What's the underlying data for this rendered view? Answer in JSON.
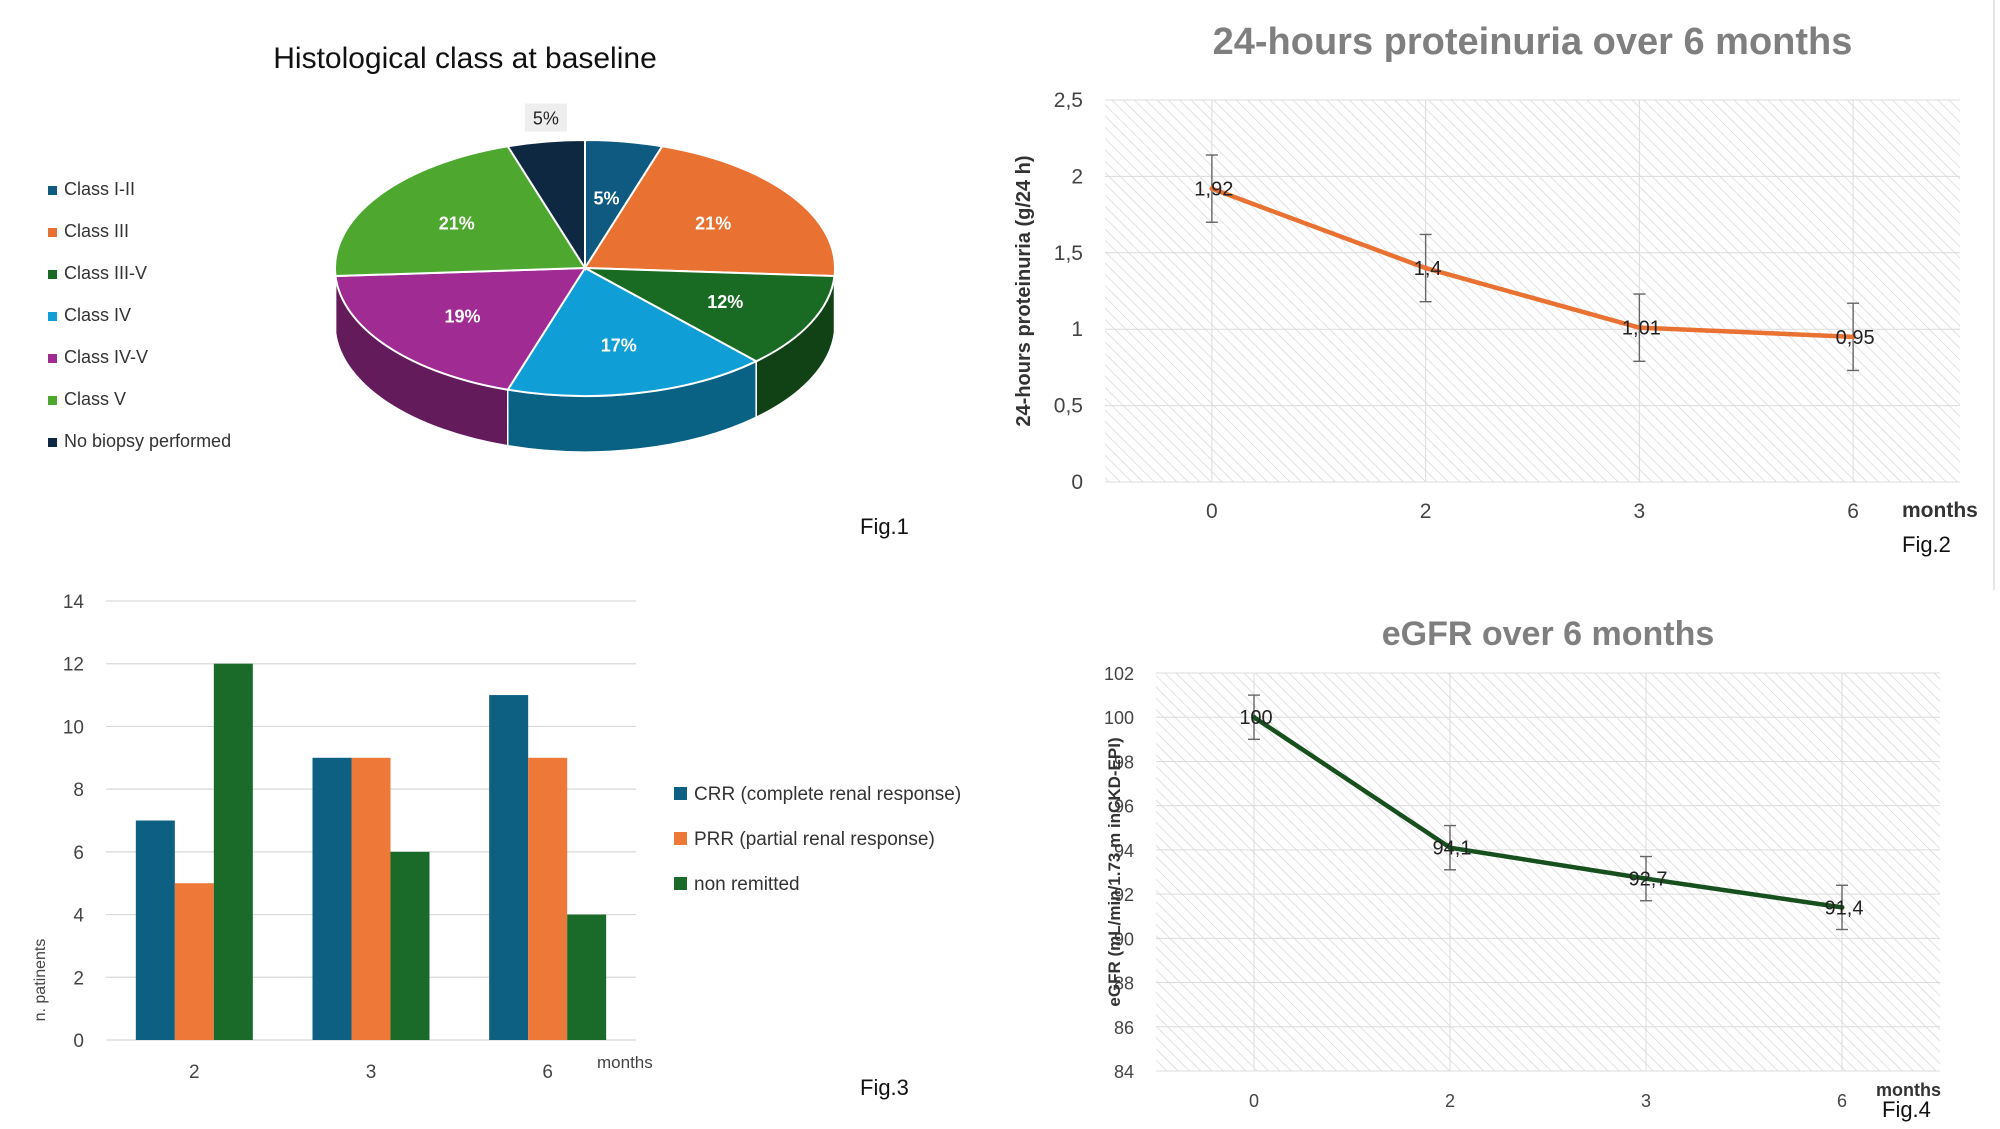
{
  "figures": {
    "fig1": "Fig.1",
    "fig2": "Fig.2",
    "fig3": "Fig.3",
    "fig4": "Fig.4"
  },
  "chart_data": [
    {
      "id": "fig1",
      "type": "pie",
      "title": "Histological class at baseline",
      "categories": [
        "Class I-II",
        "Class III",
        "Class III-V",
        "Class IV",
        "Class IV-V",
        "Class V",
        "No biopsy performed"
      ],
      "values": [
        5,
        21,
        12,
        17,
        19,
        21,
        5
      ],
      "labels": [
        "5%",
        "21%",
        "12%",
        "17%",
        "19%",
        "21%",
        "5%"
      ],
      "colors": [
        "#0e5a80",
        "#e97132",
        "#196b24",
        "#0f9ed5",
        "#a02b93",
        "#4ea72e",
        "#0e2841"
      ],
      "legend": "left"
    },
    {
      "id": "fig2",
      "type": "line",
      "title": "24-hours proteinuria over 6 months",
      "xlabel": "months",
      "ylabel": "24-hours proteinuria (g/24 h)",
      "categories": [
        "0",
        "2",
        "3",
        "6"
      ],
      "values": [
        1.92,
        1.4,
        1.01,
        0.95
      ],
      "value_labels": [
        "1,92",
        "1,4",
        "1,01",
        "0,95"
      ],
      "error_low": [
        1.7,
        1.18,
        0.79,
        0.73
      ],
      "error_high": [
        2.14,
        1.62,
        1.23,
        1.17
      ],
      "ylim": [
        0,
        2.5
      ],
      "yticks": [
        "0",
        "0,5",
        "1",
        "1,5",
        "2",
        "2,5"
      ],
      "color": "#e97132",
      "grid": true
    },
    {
      "id": "fig3",
      "type": "bar",
      "xlabel": "months",
      "ylabel": "n. patinents",
      "categories": [
        "2",
        "3",
        "6"
      ],
      "series": [
        {
          "name": "CRR (complete renal response)",
          "values": [
            7,
            9,
            11
          ],
          "color": "#0e6082"
        },
        {
          "name": "PRR (partial renal response)",
          "values": [
            5,
            9,
            9
          ],
          "color": "#ee7838"
        },
        {
          "name": "non remitted",
          "values": [
            12,
            6,
            4
          ],
          "color": "#1a6b2a"
        }
      ],
      "ylim": [
        0,
        14
      ],
      "yticks": [
        "0",
        "2",
        "4",
        "6",
        "8",
        "10",
        "12",
        "14"
      ],
      "legend": "right",
      "grid": true
    },
    {
      "id": "fig4",
      "type": "line",
      "title": "eGFR over 6 months",
      "xlabel": "months",
      "ylabel": "eGFR (mL/min/1.73 m inCKD-EPI)",
      "categories": [
        "0",
        "2",
        "3",
        "6"
      ],
      "values": [
        100,
        94.1,
        92.7,
        91.4
      ],
      "value_labels": [
        "100",
        "94,1",
        "92,7",
        "91,4"
      ],
      "error_low": [
        99,
        93.1,
        91.7,
        90.4
      ],
      "error_high": [
        101,
        95.1,
        93.7,
        92.4
      ],
      "ylim": [
        84,
        102
      ],
      "yticks": [
        "84",
        "86",
        "88",
        "90",
        "92",
        "94",
        "96",
        "98",
        "100",
        "102"
      ],
      "color": "#17501e",
      "grid": true
    }
  ]
}
